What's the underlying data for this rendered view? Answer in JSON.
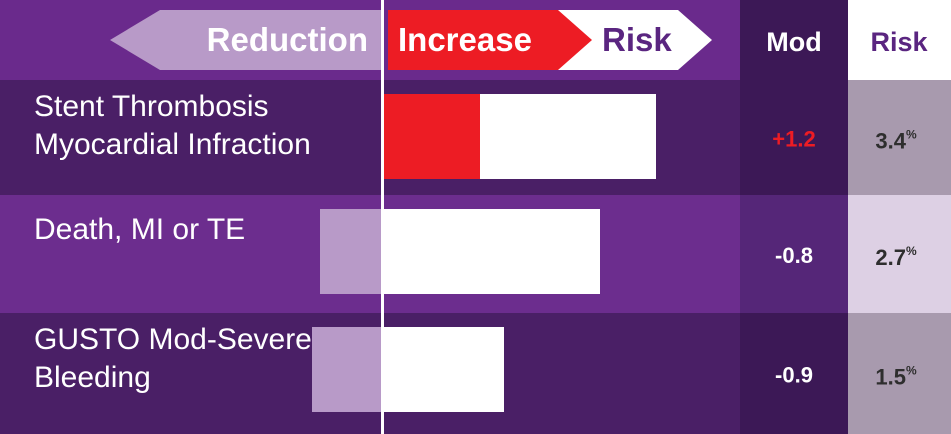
{
  "header": {
    "reduction_label": "Reduction",
    "increase_label": "Increase",
    "risk_label": "Risk",
    "mod_col_label": "Mod",
    "risk_col_label": "Risk"
  },
  "colors": {
    "background": "#5a2580",
    "header_bg": "#6a2a8c",
    "row_dark": "#4a1f66",
    "row_light": "#6c2d8e",
    "mod_col_dark": "#3c1856",
    "mod_col_light": "#552678",
    "risk_col_header": "#ffffff",
    "risk_col_a": "#a89aae",
    "risk_col_b": "#ddd0e4",
    "reduction_arrow": "#b89ac8",
    "reduction_bar": "#b89ac8",
    "increase_red": "#ed1c24",
    "bar_white": "#ffffff",
    "title_purple": "#5a2580",
    "positive_mod_text": "#ed1c24"
  },
  "chart_data": {
    "type": "bar",
    "orientation": "horizontal",
    "title": "",
    "xlabel": "",
    "ylabel": "",
    "categories": [
      "Stent Thrombosis Myocardial Infraction",
      "Death, MI or TE",
      "GUSTO Mod-Severe Bleeding"
    ],
    "category_lines": [
      [
        "Stent Thrombosis",
        "Myocardial Infraction"
      ],
      [
        "Death, MI or TE"
      ],
      [
        "GUSTO Mod-Severe",
        "Bleeding"
      ]
    ],
    "series": [
      {
        "values": [
          3.4,
          2.7,
          1.5
        ]
      },
      {
        "values": [
          1.2,
          -0.8,
          -0.9
        ]
      }
    ],
    "mod_labels": [
      "+1.2",
      "-0.8",
      "-0.9"
    ],
    "risk_numbers": [
      "3.4",
      "2.7",
      "1.5"
    ],
    "risk_unit": "%",
    "grid": false,
    "legend": "none"
  }
}
